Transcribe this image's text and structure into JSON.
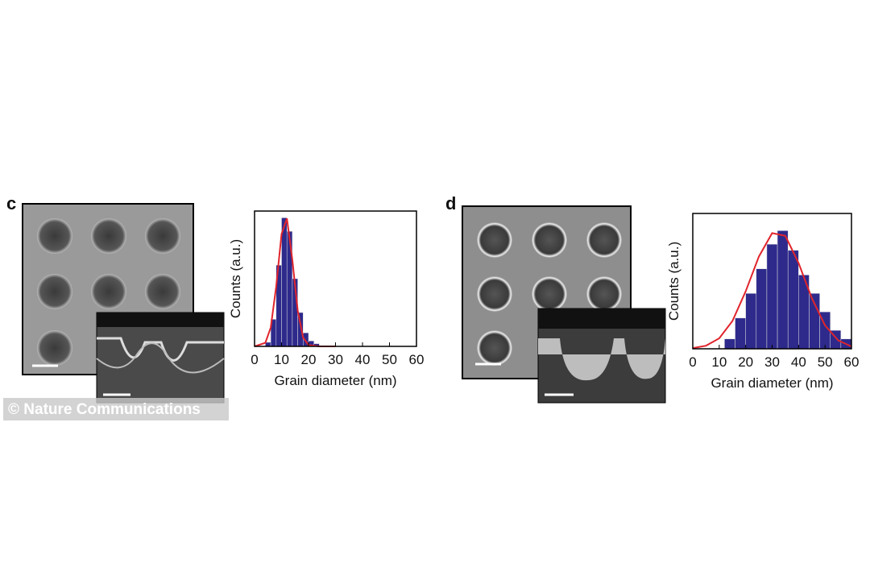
{
  "panels": [
    "c",
    "d"
  ],
  "watermark": "© Nature Communications",
  "chart_data": [
    {
      "type": "histogram",
      "xlabel": "Grain diameter (nm)",
      "ylabel": "Counts (a.u.)",
      "bins": [
        4,
        6,
        8,
        10,
        12,
        14,
        16,
        18,
        20,
        22,
        24
      ],
      "values": [
        3,
        20,
        60,
        95,
        85,
        50,
        25,
        10,
        4,
        2
      ],
      "color": "#2e2a8c",
      "fit": {
        "color": "#e0242c",
        "x": [
          0,
          4,
          6,
          8,
          10,
          12,
          14,
          16,
          18,
          20,
          24,
          30
        ],
        "values": [
          0,
          2.6,
          13.9,
          44,
          83,
          94.5,
          64,
          26.4,
          6.5,
          1,
          0,
          0
        ]
      },
      "xlim": [
        0,
        60
      ],
      "xticks": [
        0,
        10,
        20,
        30,
        40,
        50,
        60
      ],
      "ylim": [
        0,
        100
      ]
    },
    {
      "type": "histogram",
      "xlabel": "Grain diameter (nm)",
      "ylabel": "Counts (a.u.)",
      "bins": [
        12,
        16,
        20,
        24,
        28,
        32,
        36,
        40,
        44,
        48,
        52,
        56,
        60
      ],
      "values": [
        8,
        25,
        45,
        65,
        85,
        96,
        80,
        60,
        45,
        30,
        15,
        8
      ],
      "color": "#2e2a8c",
      "fit": {
        "color": "#e0242c",
        "x": [
          0,
          5,
          10,
          15,
          20,
          25,
          30,
          35,
          40,
          45,
          50,
          55,
          60
        ],
        "values": [
          0.6,
          2.5,
          8.5,
          22.6,
          46.7,
          75,
          94,
          91.8,
          69.7,
          41.2,
          19,
          6.8,
          1.9
        ]
      },
      "xlim": [
        0,
        60
      ],
      "xticks": [
        0,
        10,
        20,
        30,
        40,
        50,
        60
      ],
      "ylim": [
        0,
        110
      ]
    }
  ]
}
